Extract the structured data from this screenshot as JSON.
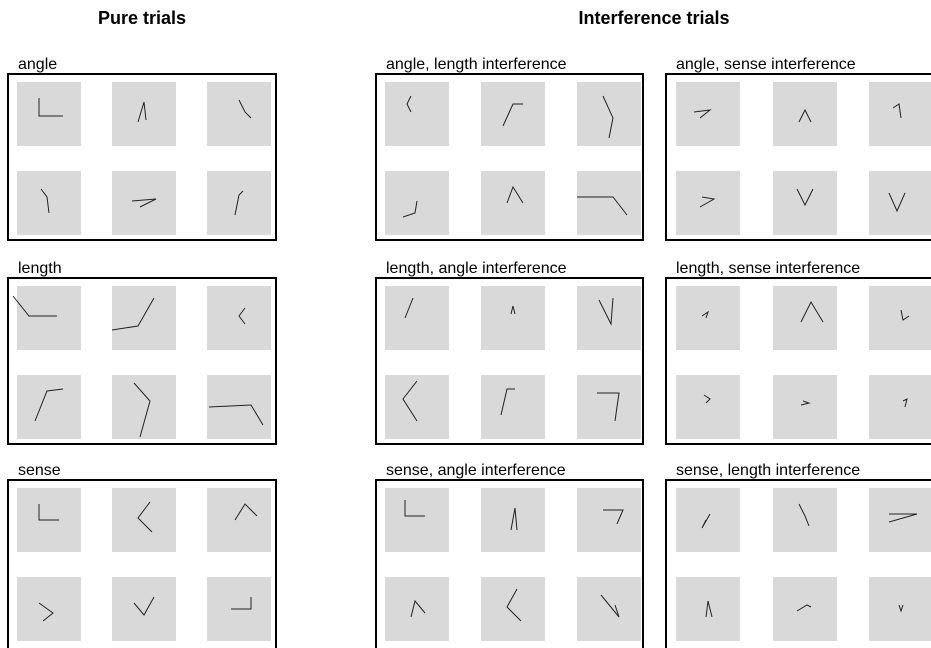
{
  "headings": {
    "pure": "Pure trials",
    "interference": "Interference trials"
  },
  "panels": [
    {
      "label": "angle"
    },
    {
      "label": "length"
    },
    {
      "label": "sense"
    },
    {
      "label": "angle, length interference"
    },
    {
      "label": "angle, sense interference"
    },
    {
      "label": "length, angle interference"
    },
    {
      "label": "length, sense interference"
    },
    {
      "label": "sense, angle interference"
    },
    {
      "label": "sense, length interference"
    }
  ]
}
